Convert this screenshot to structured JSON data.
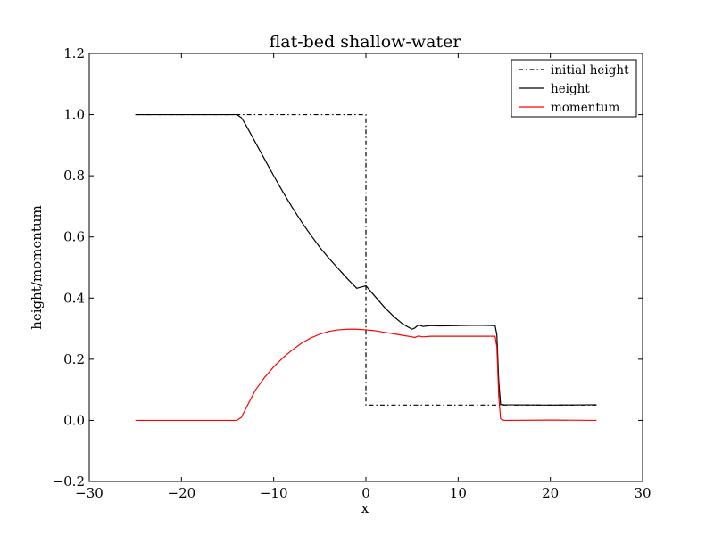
{
  "chart_data": {
    "type": "line",
    "title": "flat-bed shallow-water",
    "xlabel": "x",
    "ylabel": "height/momentum",
    "xlim": [
      -30,
      30
    ],
    "ylim": [
      -0.2,
      1.2
    ],
    "xticks": [
      -30,
      -20,
      -10,
      0,
      10,
      20,
      30
    ],
    "xtick_labels": [
      "−30",
      "−20",
      "−10",
      "0",
      "10",
      "20",
      "30"
    ],
    "yticks": [
      -0.2,
      0.0,
      0.2,
      0.4,
      0.6,
      0.8,
      1.0,
      1.2
    ],
    "ytick_labels": [
      "−0.2",
      "0.0",
      "0.2",
      "0.4",
      "0.6",
      "0.8",
      "1.0",
      "1.2"
    ],
    "grid": false,
    "legend_position": "top-right",
    "series": [
      {
        "name": "initial height",
        "color": "#000000",
        "style": "dashdot",
        "x": [
          -25,
          0,
          0,
          25
        ],
        "y": [
          1.0,
          1.0,
          0.05,
          0.05
        ]
      },
      {
        "name": "height",
        "color": "#000000",
        "style": "solid",
        "x": [
          -25,
          -14,
          -13.5,
          -13,
          -12,
          -11,
          -10,
          -9,
          -8,
          -7,
          -6,
          -5,
          -4,
          -3,
          -2,
          -1,
          0,
          1,
          2,
          3,
          4,
          5,
          5.3,
          5.7,
          6.2,
          7,
          8,
          10,
          12,
          14,
          14.2,
          14.4,
          14.6,
          15,
          20,
          25
        ],
        "y": [
          1.0,
          1.0,
          0.99,
          0.965,
          0.91,
          0.855,
          0.8,
          0.747,
          0.697,
          0.65,
          0.607,
          0.566,
          0.53,
          0.496,
          0.463,
          0.432,
          0.44,
          0.405,
          0.37,
          0.34,
          0.315,
          0.298,
          0.302,
          0.312,
          0.307,
          0.31,
          0.309,
          0.31,
          0.311,
          0.31,
          0.28,
          0.13,
          0.052,
          0.051,
          0.05,
          0.051
        ]
      },
      {
        "name": "momentum",
        "color": "#ff0000",
        "style": "solid",
        "x": [
          -25,
          -14,
          -13.5,
          -13,
          -12,
          -11,
          -10,
          -9,
          -8,
          -7,
          -6,
          -5,
          -4,
          -3,
          -2,
          -1,
          0,
          1,
          2,
          3,
          4,
          5,
          5.3,
          5.7,
          6.2,
          7,
          8,
          10,
          12,
          14,
          14.2,
          14.4,
          14.6,
          15,
          20,
          25
        ],
        "y": [
          0.0,
          0.0,
          0.01,
          0.04,
          0.098,
          0.14,
          0.175,
          0.205,
          0.23,
          0.252,
          0.269,
          0.282,
          0.291,
          0.296,
          0.298,
          0.298,
          0.296,
          0.293,
          0.288,
          0.283,
          0.278,
          0.273,
          0.271,
          0.276,
          0.273,
          0.275,
          0.275,
          0.275,
          0.275,
          0.275,
          0.24,
          0.08,
          0.005,
          0.0,
          0.001,
          0.0
        ]
      }
    ]
  }
}
